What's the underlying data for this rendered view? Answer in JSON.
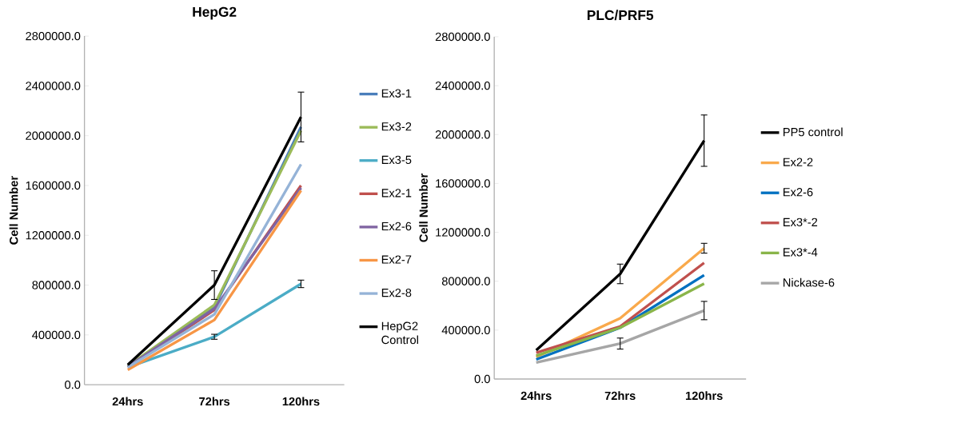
{
  "chart_data": [
    {
      "type": "line",
      "title": "HepG2",
      "ylabel": "Cell Number",
      "categories": [
        "24hrs",
        "72hrs",
        "120hrs"
      ],
      "ylim": [
        0,
        2800000
      ],
      "yticks": [
        {
          "value": 0,
          "label": "0.0"
        },
        {
          "value": 400000,
          "label": "400000.0"
        },
        {
          "value": 800000,
          "label": "800000.0"
        },
        {
          "value": 1200000,
          "label": "1200000.0"
        },
        {
          "value": 1600000,
          "label": "1600000.0"
        },
        {
          "value": 2000000,
          "label": "2000000.0"
        },
        {
          "value": 2400000,
          "label": "2400000.0"
        },
        {
          "value": 2800000,
          "label": "2800000.0"
        }
      ],
      "legend": "right",
      "grid": false,
      "marker": "none",
      "series": [
        {
          "name": "Ex3-1",
          "color": "#4a7ebb",
          "values": [
            145000,
            620000,
            2070000
          ]
        },
        {
          "name": "Ex3-2",
          "color": "#9bbb59",
          "values": [
            150000,
            640000,
            2040000
          ]
        },
        {
          "name": "Ex3-5",
          "color": "#4bacc6",
          "values": [
            140000,
            385000,
            810000
          ],
          "errors": [
            null,
            20000,
            30000
          ]
        },
        {
          "name": "Ex2-1",
          "color": "#c0504d",
          "values": [
            140000,
            600000,
            1600000
          ]
        },
        {
          "name": "Ex2-6",
          "color": "#8064a2",
          "values": [
            145000,
            610000,
            1580000
          ]
        },
        {
          "name": "Ex2-7",
          "color": "#f79646",
          "values": [
            120000,
            520000,
            1560000
          ]
        },
        {
          "name": "Ex2-8",
          "color": "#95b3d7",
          "values": [
            140000,
            565000,
            1770000
          ]
        },
        {
          "name": "HepG2 Control",
          "color": "#000000",
          "values": [
            160000,
            800000,
            2150000
          ],
          "errors": [
            null,
            115000,
            200000
          ]
        }
      ]
    },
    {
      "type": "line",
      "title": "PLC/PRF5",
      "ylabel": "Cell Number",
      "categories": [
        "24hrs",
        "72hrs",
        "120hrs"
      ],
      "ylim": [
        0,
        2800000
      ],
      "yticks": [
        {
          "value": 0,
          "label": "0.0"
        },
        {
          "value": 400000,
          "label": "400000.0"
        },
        {
          "value": 800000,
          "label": "800000.0"
        },
        {
          "value": 1200000,
          "label": "1200000.0"
        },
        {
          "value": 1600000,
          "label": "1600000.0"
        },
        {
          "value": 2000000,
          "label": "2000000.0"
        },
        {
          "value": 2400000,
          "label": "2400000.0"
        },
        {
          "value": 2800000,
          "label": "2800000.0"
        }
      ],
      "legend": "right",
      "grid": false,
      "marker": "none",
      "series": [
        {
          "name": "PP5 control",
          "color": "#000000",
          "values": [
            235000,
            860000,
            1950000
          ],
          "errors": [
            null,
            80000,
            210000
          ]
        },
        {
          "name": "Ex2-2",
          "color": "#f9a94b",
          "values": [
            180000,
            497000,
            1070000
          ],
          "errors": [
            null,
            null,
            40000
          ]
        },
        {
          "name": "Ex2-6",
          "color": "#0070c0",
          "values": [
            160000,
            420000,
            850000
          ]
        },
        {
          "name": "Ex3*-2",
          "color": "#c0504d",
          "values": [
            215000,
            430000,
            950000
          ]
        },
        {
          "name": "Ex3*-4",
          "color": "#8ab54a",
          "values": [
            190000,
            420000,
            780000
          ]
        },
        {
          "name": "Nickase-6",
          "color": "#a6a6a6",
          "values": [
            135000,
            290000,
            560000
          ],
          "errors": [
            null,
            45000,
            75000
          ]
        }
      ]
    }
  ]
}
